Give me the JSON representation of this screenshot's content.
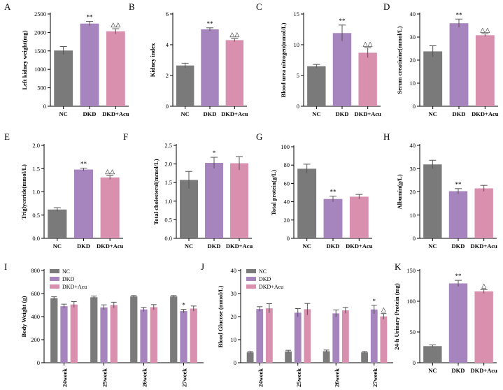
{
  "colors": {
    "NC": "#7a7a7a",
    "DKD": "#a684be",
    "DKD+Acu": "#d98fae"
  },
  "chart_data": [
    {
      "id": "A",
      "type": "bar",
      "panel_label": "A",
      "ylabel": "Left kidney weight(mg)",
      "categories": [
        "NC",
        "DKD",
        "DKD+Acu"
      ],
      "values": [
        1510,
        2240,
        2030
      ],
      "errors": [
        110,
        60,
        70
      ],
      "ylim": [
        0,
        2500
      ],
      "yticks": [
        0,
        500,
        1000,
        1500,
        2000,
        2500
      ],
      "tick_labels": [
        "0",
        "500",
        "1000",
        "1500",
        "2000",
        "2500"
      ],
      "annotations": [
        "",
        "**",
        "△△"
      ]
    },
    {
      "id": "B",
      "type": "bar",
      "panel_label": "B",
      "ylabel": "Kidney index",
      "categories": [
        "NC",
        "DKD",
        "DKD+Acu"
      ],
      "values": [
        2.65,
        5.0,
        4.3
      ],
      "errors": [
        0.15,
        0.1,
        0.1
      ],
      "ylim": [
        0,
        6
      ],
      "yticks": [
        0,
        2,
        4,
        6
      ],
      "tick_labels": [
        "0",
        "2",
        "4",
        "6"
      ],
      "annotations": [
        "",
        "**",
        "△△"
      ]
    },
    {
      "id": "C",
      "type": "bar",
      "panel_label": "C",
      "ylabel": "Blood urea nitrogen(mmol/L)",
      "categories": [
        "NC",
        "DKD",
        "DKD+Acu"
      ],
      "values": [
        6.5,
        11.9,
        8.7
      ],
      "errors": [
        0.3,
        1.3,
        0.8
      ],
      "ylim": [
        0,
        15
      ],
      "yticks": [
        0,
        5,
        10,
        15
      ],
      "tick_labels": [
        "0",
        "5",
        "10",
        "15"
      ],
      "annotations": [
        "",
        "**",
        "△△"
      ]
    },
    {
      "id": "D",
      "type": "bar",
      "panel_label": "D",
      "ylabel": "Serum creatinine(mmol/L)",
      "categories": [
        "NC",
        "DKD",
        "DKD+Acu"
      ],
      "values": [
        23.8,
        36,
        30.8
      ],
      "errors": [
        2.4,
        1.8,
        0.6
      ],
      "ylim": [
        0,
        40
      ],
      "yticks": [
        0,
        10,
        20,
        30,
        40
      ],
      "tick_labels": [
        "0",
        "10",
        "20",
        "30",
        "40"
      ],
      "annotations": [
        "",
        "**",
        "△△"
      ]
    },
    {
      "id": "E",
      "type": "bar",
      "panel_label": "E",
      "ylabel": "Triglyceride(mmol/L)",
      "categories": [
        "NC",
        "DKD",
        "DKD+Acu"
      ],
      "values": [
        0.62,
        1.48,
        1.31
      ],
      "errors": [
        0.04,
        0.03,
        0.04
      ],
      "ylim": [
        0,
        2
      ],
      "yticks": [
        0,
        0.5,
        1,
        1.5,
        2
      ],
      "tick_labels": [
        "0.0",
        "0.5",
        "1.0",
        "1.5",
        "2.0"
      ],
      "annotations": [
        "",
        "**",
        "△△"
      ]
    },
    {
      "id": "F",
      "type": "bar",
      "panel_label": "F",
      "ylabel": "Total cholesterol(mmol/L)",
      "categories": [
        "NC",
        "DKD",
        "DKD+Acu"
      ],
      "values": [
        1.57,
        2.03,
        2.02
      ],
      "errors": [
        0.23,
        0.15,
        0.18
      ],
      "ylim": [
        0,
        2.5
      ],
      "yticks": [
        0,
        0.5,
        1,
        1.5,
        2,
        2.5
      ],
      "tick_labels": [
        "0.0",
        "0.5",
        "1.0",
        "1.5",
        "2.0",
        "2.5"
      ],
      "annotations": [
        "",
        "*",
        ""
      ]
    },
    {
      "id": "G",
      "type": "bar",
      "panel_label": "G",
      "ylabel": "Total protein(g/L)",
      "categories": [
        "NC",
        "DKD",
        "DKD+Acu"
      ],
      "values": [
        76,
        43,
        45.5
      ],
      "errors": [
        5,
        3,
        2.5
      ],
      "ylim": [
        0,
        100
      ],
      "yticks": [
        0,
        20,
        40,
        60,
        80,
        100
      ],
      "tick_labels": [
        "0",
        "20",
        "40",
        "60",
        "80",
        "100"
      ],
      "annotations": [
        "",
        "**",
        ""
      ]
    },
    {
      "id": "H",
      "type": "bar",
      "panel_label": "H",
      "ylabel": "Albumin(g/L)",
      "categories": [
        "NC",
        "DKD",
        "DKD+Acu"
      ],
      "values": [
        31.8,
        20.3,
        21.5
      ],
      "errors": [
        1.8,
        1.1,
        1.3
      ],
      "ylim": [
        0,
        40
      ],
      "yticks": [
        0,
        10,
        20,
        30,
        40
      ],
      "tick_labels": [
        "0",
        "10",
        "20",
        "30",
        "40"
      ],
      "annotations": [
        "",
        "**",
        ""
      ]
    },
    {
      "id": "I",
      "type": "grouped-bar",
      "panel_label": "I",
      "ylabel": "Body Weight (g)",
      "categories": [
        "24week",
        "25week",
        "26week",
        "27week"
      ],
      "legend": [
        "NC",
        "DKD",
        "DKD+Acu"
      ],
      "series": [
        {
          "name": "NC",
          "values": [
            560,
            568,
            575,
            575
          ],
          "errors": [
            12,
            10,
            8,
            8
          ],
          "annotations": [
            "",
            "",
            "",
            ""
          ]
        },
        {
          "name": "DKD",
          "values": [
            490,
            480,
            462,
            448
          ],
          "errors": [
            18,
            22,
            18,
            15
          ],
          "annotations": [
            "",
            "",
            "",
            "*"
          ]
        },
        {
          "name": "DKD+Acu",
          "values": [
            505,
            500,
            482,
            470
          ],
          "errors": [
            25,
            25,
            22,
            22
          ],
          "annotations": [
            "",
            "",
            "",
            ""
          ]
        }
      ],
      "ylim": [
        0,
        800
      ],
      "yticks": [
        0,
        200,
        400,
        600,
        800
      ],
      "tick_labels": [
        "0",
        "200",
        "400",
        "600",
        "800"
      ]
    },
    {
      "id": "J",
      "type": "grouped-bar",
      "panel_label": "J",
      "ylabel": "Blood Glucose (mmol/L)",
      "categories": [
        "24week",
        "25week",
        "26week",
        "27week"
      ],
      "legend": [
        "NC",
        "DKD",
        "DKD+Acu"
      ],
      "series": [
        {
          "name": "NC",
          "values": [
            4.5,
            4.9,
            5.0,
            4.5
          ],
          "errors": [
            0.4,
            0.5,
            0.5,
            0.4
          ],
          "annotations": [
            "",
            "",
            "",
            ""
          ]
        },
        {
          "name": "DKD",
          "values": [
            23.3,
            21.7,
            21.4,
            23.1
          ],
          "errors": [
            1.0,
            1.8,
            1.5,
            1.8
          ],
          "annotations": [
            "",
            "",
            "",
            "*"
          ]
        },
        {
          "name": "DKD+Acu",
          "values": [
            23.6,
            23.2,
            22.7,
            20.1
          ],
          "errors": [
            2.0,
            2.5,
            1.3,
            1.2
          ],
          "annotations": [
            "",
            "",
            "",
            "△"
          ]
        }
      ],
      "ylim": [
        0,
        40
      ],
      "yticks": [
        0,
        10,
        20,
        30,
        40
      ],
      "tick_labels": [
        "0",
        "10",
        "20",
        "30",
        "40"
      ]
    },
    {
      "id": "K",
      "type": "bar",
      "panel_label": "K",
      "ylabel": "24-h Urinary Protein (mg)",
      "categories": [
        "NC",
        "DKD",
        "DKD+Acu"
      ],
      "values": [
        27,
        129,
        116
      ],
      "errors": [
        2,
        5,
        3
      ],
      "ylim": [
        0,
        150
      ],
      "yticks": [
        0,
        50,
        100,
        150
      ],
      "tick_labels": [
        "0",
        "50",
        "100",
        "150"
      ],
      "annotations": [
        "",
        "**",
        "△"
      ]
    }
  ]
}
